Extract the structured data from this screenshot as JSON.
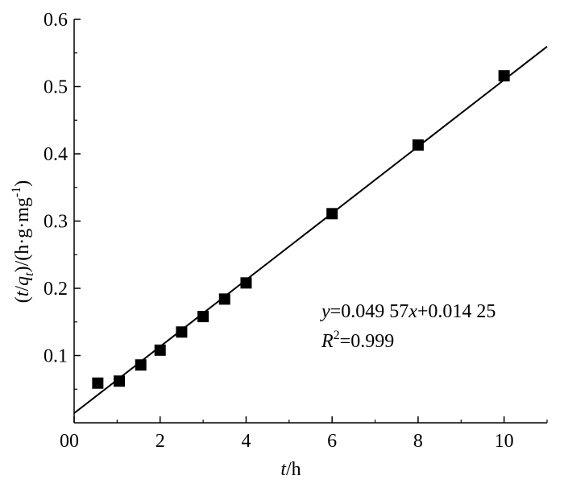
{
  "chart_data": {
    "type": "scatter",
    "x": [
      0.55,
      1.05,
      1.55,
      2.0,
      2.5,
      3.0,
      3.5,
      4.0,
      6.0,
      8.0,
      10.0
    ],
    "y": [
      0.059,
      0.062,
      0.086,
      0.108,
      0.135,
      0.158,
      0.184,
      0.208,
      0.311,
      0.413,
      0.516
    ],
    "fit_line": {
      "slope": 0.04957,
      "intercept": 0.01425,
      "x_range": [
        0,
        11
      ]
    },
    "xlim": [
      0,
      11
    ],
    "ylim": [
      0,
      0.6
    ],
    "x_ticks": [
      0,
      2,
      4,
      6,
      8,
      10
    ],
    "x_tick_labels": [
      "0",
      "2",
      "4",
      "6",
      "8",
      "10"
    ],
    "y_ticks": [
      0.1,
      0.2,
      0.3,
      0.4,
      0.5,
      0.6
    ],
    "y_tick_labels": [
      "0.1",
      "0.2",
      "0.3",
      "0.4",
      "0.5",
      "0.6"
    ],
    "xlabel": {
      "var": "t",
      "rest": "/h"
    },
    "ylabel": {
      "open": "(",
      "var_t": "t",
      "slash": "/",
      "var_q": "q",
      "sub": "t",
      "mid": ")/(h·g·mg",
      "sup": "-1",
      "close": ")"
    },
    "equation": {
      "y": "y",
      "eq1": "=0.049 57",
      "x": "x",
      "eq2": "+0.014 25"
    },
    "r2": {
      "R": "R",
      "sup": "2",
      "val": "=0.999"
    },
    "grid": false,
    "legend": "none",
    "marker_color": "#000000",
    "line_color": "#000000"
  }
}
